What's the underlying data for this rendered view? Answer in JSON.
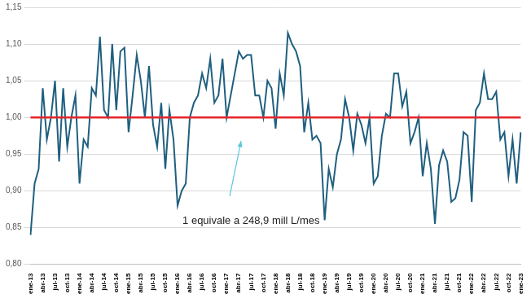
{
  "chart_data": {
    "type": "line",
    "categories": [
      "ene-13",
      null,
      null,
      "abr-13",
      null,
      null,
      "jul-13",
      null,
      null,
      "oct-13",
      null,
      null,
      "ene-14",
      null,
      null,
      "abr-14",
      null,
      null,
      "jul-14",
      null,
      null,
      "oct-14",
      null,
      null,
      "ene-15",
      null,
      null,
      "abr-15",
      null,
      null,
      "jul-15",
      null,
      null,
      "oct-15",
      null,
      null,
      "ene-16",
      null,
      null,
      "abr-16",
      null,
      null,
      "jul-16",
      null,
      null,
      "oct-16",
      null,
      null,
      "ene-17",
      null,
      null,
      "abr-17",
      null,
      null,
      "jul-17",
      null,
      null,
      "oct-17",
      null,
      null,
      "ene-18",
      null,
      null,
      "abr-18",
      null,
      null,
      "jul-18",
      null,
      null,
      "oct-18",
      null,
      null,
      "ene-19",
      null,
      null,
      "abr-19",
      null,
      null,
      "jul-19",
      null,
      null,
      "oct-19",
      null,
      null,
      "ene-20",
      null,
      null,
      "abr-20",
      null,
      null,
      "jul-20",
      null,
      null,
      "oct-20",
      null,
      null,
      "ene-21",
      null,
      null,
      "abr-21",
      null,
      null,
      "jul-21",
      null,
      null,
      "oct-21",
      null,
      null,
      "ene-22",
      null,
      null,
      "abr-22",
      null,
      null,
      "jul-22",
      null,
      null,
      "oct-22",
      null,
      null,
      "ene-23"
    ],
    "series": [
      {
        "color": "#1f5f7f",
        "line_style": "solid",
        "values": [
          0.84,
          0.91,
          0.93,
          1.04,
          0.97,
          1.0,
          1.05,
          0.94,
          1.04,
          0.96,
          1.0,
          1.03,
          0.91,
          0.97,
          0.96,
          1.04,
          1.03,
          1.11,
          1.01,
          1.0,
          1.1,
          1.01,
          1.09,
          1.095,
          0.98,
          1.03,
          1.085,
          1.05,
          1.0,
          1.07,
          0.99,
          0.96,
          1.02,
          0.93,
          1.01,
          0.97,
          0.88,
          0.9,
          0.91,
          1.0,
          1.02,
          1.03,
          1.06,
          1.04,
          1.08,
          1.02,
          1.03,
          1.08,
          1.0,
          1.03,
          1.06,
          1.09,
          1.08,
          1.085,
          1.085,
          1.03,
          1.03,
          1.0,
          1.05,
          1.04,
          0.985,
          1.06,
          1.03,
          1.115,
          1.1,
          1.09,
          1.07,
          0.98,
          1.02,
          0.97,
          0.975,
          0.965,
          0.86,
          0.93,
          0.905,
          0.95,
          0.97,
          1.025,
          1.0,
          0.955,
          1.005,
          0.99,
          0.965,
          1.0,
          0.91,
          0.92,
          0.975,
          1.005,
          1.0,
          1.06,
          1.06,
          1.015,
          1.035,
          0.965,
          0.98,
          1.0,
          0.92,
          0.965,
          0.93,
          0.855,
          0.935,
          0.955,
          0.94,
          0.885,
          0.89,
          0.915,
          0.98,
          0.975,
          0.885,
          1.01,
          1.02,
          1.06,
          1.025,
          1.025,
          1.035,
          0.97,
          0.98,
          0.92,
          0.97,
          0.91,
          0.98
        ]
      },
      {
        "color": "#e3262b",
        "line_style": "solid",
        "values": [
          1,
          1,
          1,
          1,
          1,
          1,
          1,
          1,
          1,
          1,
          1,
          1,
          1,
          1,
          1,
          1,
          1,
          1,
          1,
          1,
          1,
          1,
          1,
          1,
          1,
          1,
          1,
          1,
          1,
          1,
          1,
          1,
          1,
          1,
          1,
          1,
          1,
          1,
          1,
          1,
          1,
          1,
          1,
          1,
          1,
          1,
          1,
          1,
          1,
          1,
          1,
          1,
          1,
          1,
          1,
          1,
          1,
          1,
          1,
          1,
          1,
          1,
          1,
          1,
          1,
          1,
          1,
          1,
          1,
          1,
          1,
          1,
          1,
          1,
          1,
          1,
          1,
          1,
          1,
          1,
          1,
          1,
          1,
          1,
          1,
          1,
          1,
          1,
          1,
          1,
          1,
          1,
          1,
          1,
          1,
          1,
          1,
          1,
          1,
          1,
          1,
          1,
          1,
          1,
          1,
          1,
          1,
          1,
          1,
          1,
          1,
          1,
          1,
          1,
          1,
          1,
          1,
          1,
          1,
          1,
          1
        ]
      }
    ],
    "annotations": [
      "1 equivale a 248,9 mill L/mes"
    ],
    "ylim": [
      0.8,
      1.15
    ],
    "yticks": [
      {
        "value": 0.8,
        "label": "0,80"
      },
      {
        "value": 0.85,
        "label": "0,85"
      },
      {
        "value": 0.9,
        "label": "0,90"
      },
      {
        "value": 0.95,
        "label": "0,95"
      },
      {
        "value": 1.0,
        "label": "1,00"
      },
      {
        "value": 1.05,
        "label": "1,05"
      },
      {
        "value": 1.1,
        "label": "1,10"
      },
      {
        "value": 1.15,
        "label": "1,15"
      }
    ],
    "grid": true,
    "legend": "none"
  }
}
